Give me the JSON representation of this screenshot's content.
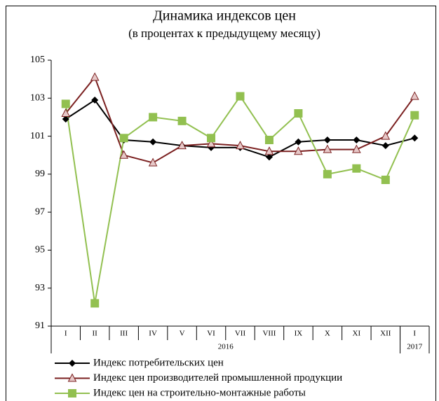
{
  "chart_data": {
    "type": "line",
    "title": "Динамика индексов цен",
    "subtitle": "(в процентах к предыдущему месяцу)",
    "category_groups": [
      {
        "label": "2016",
        "categories": [
          "I",
          "II",
          "III",
          "IV",
          "V",
          "VI",
          "VII",
          "VIII",
          "IX",
          "X",
          "XI",
          "XII"
        ]
      },
      {
        "label": "2017",
        "categories": [
          "I"
        ]
      }
    ],
    "series": [
      {
        "name": "Индекс потребительских цен",
        "color": "#000000",
        "marker": "diamond",
        "values": [
          101.9,
          102.9,
          100.8,
          100.7,
          100.5,
          100.4,
          100.4,
          99.9,
          100.7,
          100.8,
          100.8,
          100.5,
          100.9
        ]
      },
      {
        "name": "Индекс цен производителей промышленной продукции",
        "color": "#7b2020",
        "marker": "triangle",
        "values": [
          102.2,
          104.1,
          100.0,
          99.6,
          100.5,
          100.6,
          100.5,
          100.2,
          100.2,
          100.3,
          100.3,
          101.0,
          103.1
        ]
      },
      {
        "name": "Индекс цен на строительно-монтажные работы",
        "color": "#92c050",
        "marker": "square",
        "values": [
          102.7,
          92.2,
          100.9,
          102.0,
          101.8,
          100.9,
          103.1,
          100.8,
          102.2,
          99.0,
          99.3,
          98.7,
          102.1
        ]
      }
    ],
    "ylim": [
      91,
      105
    ],
    "yticks": [
      91,
      93,
      95,
      97,
      99,
      101,
      103,
      105
    ],
    "grid": false,
    "legend": "bottom"
  }
}
